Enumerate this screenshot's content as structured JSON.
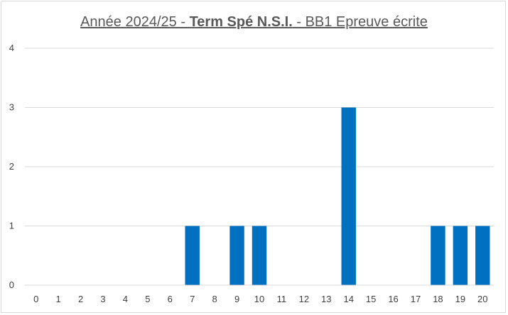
{
  "chart_data": {
    "type": "bar",
    "title": {
      "prefix": "Année 2024/25 - ",
      "bold": "Term Spé N.S.I.",
      "suffix": " - BB1 Epreuve écrite"
    },
    "xlabel": "",
    "ylabel": "",
    "categories": [
      "0",
      "1",
      "2",
      "3",
      "4",
      "5",
      "6",
      "7",
      "8",
      "9",
      "10",
      "11",
      "12",
      "13",
      "14",
      "15",
      "16",
      "17",
      "18",
      "19",
      "20"
    ],
    "values": [
      0,
      0,
      0,
      0,
      0,
      0,
      0,
      1,
      0,
      1,
      1,
      0,
      0,
      0,
      3,
      0,
      0,
      0,
      1,
      1,
      1
    ],
    "ylim": [
      0,
      4
    ],
    "yticks": [
      "0",
      "1",
      "2",
      "3",
      "4"
    ],
    "grid": true,
    "legend": "none",
    "colors": {
      "bar": "#0070c0",
      "grid": "#d9d9d9",
      "axis": "#d9d9d9",
      "text": "#595959"
    }
  }
}
